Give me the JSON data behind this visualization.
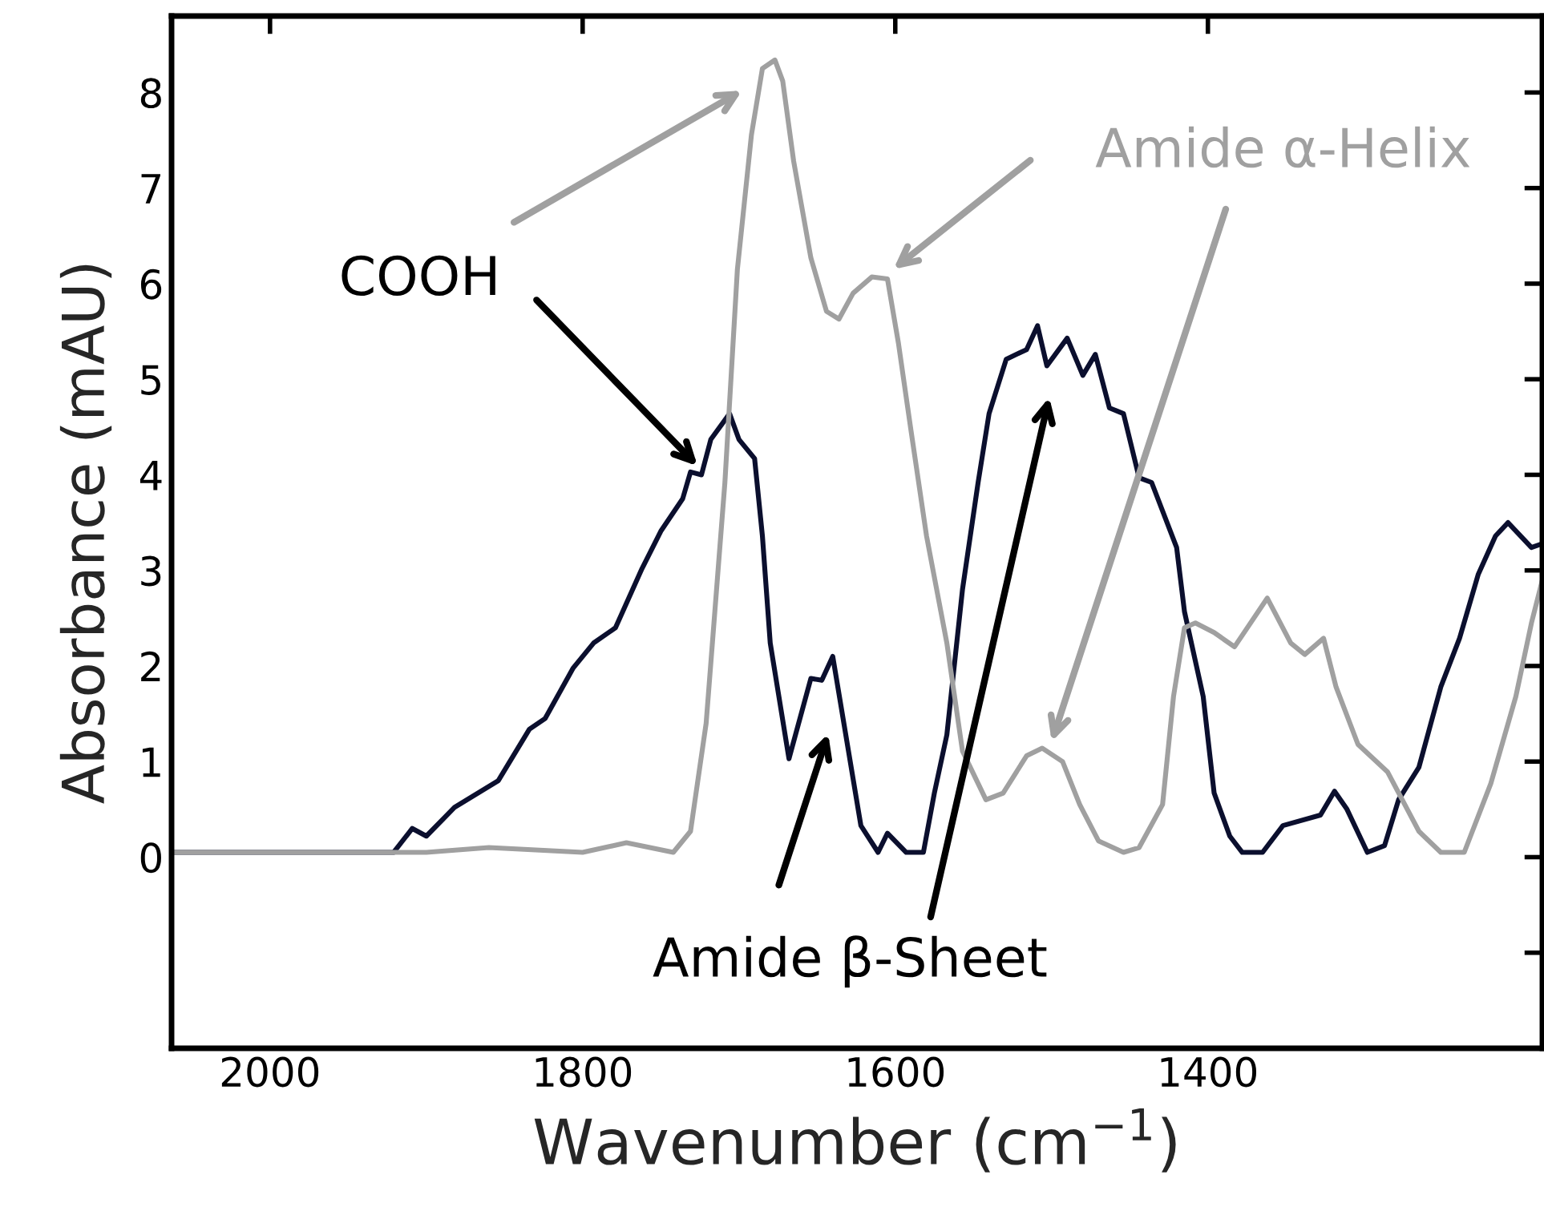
{
  "chart_data": {
    "type": "line",
    "xlabel": "Wavenumber (cm$^{−1}$)",
    "ylabel": "Absorbance (mAU)",
    "xlim": [
      2063,
      1186
    ],
    "ylim": [
      -2,
      8.8
    ],
    "xticks": [
      2000,
      1800,
      1600,
      1400
    ],
    "yticks": [
      {
        "value": -1,
        "label": null
      },
      0,
      1,
      2,
      3,
      4,
      5,
      6,
      7,
      8
    ],
    "grid": false,
    "legend": false,
    "marker": "none",
    "line_style": "solid",
    "series": [
      {
        "color": "#0b0f2e",
        "x": [
          2062,
          1921,
          1909,
          1900,
          1882,
          1854,
          1834,
          1824,
          1806,
          1793,
          1779,
          1762,
          1750,
          1736,
          1731,
          1724,
          1718,
          1706,
          1700,
          1690,
          1685,
          1680,
          1668,
          1654,
          1647,
          1640,
          1622,
          1611,
          1605,
          1593,
          1582,
          1575,
          1567,
          1557,
          1547,
          1540,
          1529,
          1516,
          1509,
          1503,
          1490,
          1480,
          1472,
          1463,
          1454,
          1444,
          1436,
          1420,
          1415,
          1403,
          1396,
          1386,
          1378,
          1365,
          1352,
          1328,
          1319,
          1311,
          1298,
          1287,
          1278,
          1265,
          1251,
          1239,
          1227,
          1216,
          1208,
          1193,
          1186
        ],
        "values": [
          0.05,
          0.05,
          0.3,
          0.22,
          0.52,
          0.8,
          1.34,
          1.45,
          1.98,
          2.24,
          2.4,
          3.02,
          3.41,
          3.75,
          4.03,
          4.0,
          4.37,
          4.64,
          4.37,
          4.17,
          3.36,
          2.24,
          1.03,
          1.87,
          1.85,
          2.1,
          0.33,
          0.05,
          0.25,
          0.05,
          0.05,
          0.67,
          1.28,
          2.8,
          3.92,
          4.64,
          5.21,
          5.31,
          5.56,
          5.14,
          5.43,
          5.04,
          5.26,
          4.7,
          4.64,
          3.97,
          3.92,
          3.24,
          2.57,
          1.68,
          0.67,
          0.22,
          0.05,
          0.05,
          0.33,
          0.44,
          0.69,
          0.5,
          0.05,
          0.12,
          0.6,
          0.94,
          1.78,
          2.29,
          2.96,
          3.36,
          3.5,
          3.24,
          3.28
        ]
      },
      {
        "color": "#a0a0a0",
        "x": [
          2062,
          1900,
          1860,
          1800,
          1772,
          1742,
          1731,
          1721,
          1709,
          1701,
          1692,
          1685,
          1677,
          1672,
          1665,
          1654,
          1644,
          1636,
          1627,
          1615,
          1605,
          1598,
          1590,
          1580,
          1567,
          1557,
          1542,
          1531,
          1516,
          1506,
          1493,
          1482,
          1470,
          1454,
          1444,
          1429,
          1422,
          1415,
          1408,
          1396,
          1383,
          1362,
          1347,
          1338,
          1326,
          1318,
          1304,
          1285,
          1265,
          1251,
          1236,
          1219,
          1203,
          1193,
          1186
        ],
        "values": [
          0.05,
          0.05,
          0.1,
          0.05,
          0.15,
          0.05,
          0.27,
          1.4,
          3.92,
          6.15,
          7.56,
          8.25,
          8.34,
          8.12,
          7.28,
          6.27,
          5.71,
          5.63,
          5.9,
          6.07,
          6.05,
          5.38,
          4.47,
          3.36,
          2.24,
          1.11,
          0.6,
          0.67,
          1.06,
          1.14,
          1.0,
          0.55,
          0.17,
          0.05,
          0.1,
          0.55,
          1.68,
          2.4,
          2.45,
          2.35,
          2.2,
          2.71,
          2.24,
          2.12,
          2.29,
          1.78,
          1.18,
          0.89,
          0.27,
          0.05,
          0.05,
          0.77,
          1.68,
          2.45,
          2.9
        ]
      }
    ],
    "annotations": [
      "COOH",
      "Amide α-Helix",
      "Amide β-Sheet"
    ]
  }
}
